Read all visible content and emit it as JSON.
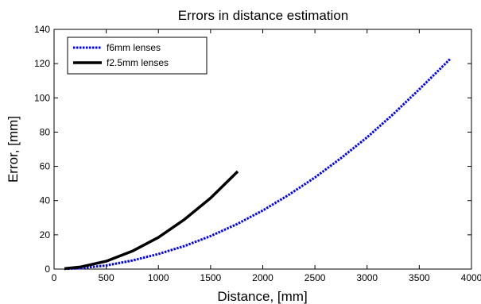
{
  "chart_data": {
    "type": "line",
    "title": "Errors in distance estimation",
    "xlabel": "Distance, [mm]",
    "ylabel": "Error, [mm]",
    "xlim": [
      0,
      4000
    ],
    "ylim": [
      0,
      140
    ],
    "xticks": [
      0,
      500,
      1000,
      1500,
      2000,
      2500,
      3000,
      3500,
      4000
    ],
    "yticks": [
      0,
      20,
      40,
      60,
      80,
      100,
      120,
      140
    ],
    "grid": false,
    "legend_position": "top-left",
    "series": [
      {
        "name": "f6mm lenses",
        "color": "#0000ff",
        "style": "dotted",
        "x": [
          100,
          250,
          500,
          750,
          1000,
          1250,
          1500,
          1750,
          2000,
          2250,
          2500,
          2750,
          3000,
          3250,
          3500,
          3800
        ],
        "y": [
          0.1,
          0.5,
          2.1,
          5.0,
          8.8,
          13.5,
          19.3,
          26.2,
          34.2,
          43.4,
          53.5,
          64.8,
          77.0,
          90.5,
          105.0,
          123.0
        ]
      },
      {
        "name": "f2.5mm lenses",
        "color": "#000000",
        "style": "solid",
        "x": [
          100,
          250,
          500,
          750,
          1000,
          1250,
          1500,
          1760
        ],
        "y": [
          0.3,
          1.2,
          4.6,
          10.5,
          18.5,
          29.0,
          41.5,
          57.0
        ]
      }
    ]
  }
}
